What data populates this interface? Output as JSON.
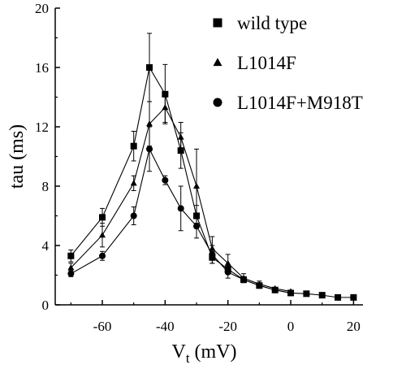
{
  "chart_data": {
    "type": "line",
    "title": "",
    "xlabel_main": "V",
    "xlabel_sub": "t",
    "xlabel_unit": " (mV)",
    "ylabel": "tau (ms)",
    "xlim": [
      -75,
      23
    ],
    "ylim": [
      0,
      20
    ],
    "xticks": [
      -60,
      -40,
      -20,
      0,
      20
    ],
    "yticks": [
      0,
      4,
      8,
      12,
      16,
      20
    ],
    "grid": false,
    "legend_position": "top-right",
    "series": [
      {
        "name": "wild type",
        "marker": "square",
        "x": [
          -70,
          -60,
          -50,
          -45,
          -40,
          -35,
          -30,
          -25,
          -20,
          -15,
          -10,
          -5,
          0,
          5,
          10,
          15,
          20
        ],
        "y": [
          3.3,
          5.9,
          10.7,
          16.0,
          14.2,
          10.4,
          6.0,
          3.2,
          2.4,
          1.7,
          1.3,
          1.0,
          0.8,
          0.75,
          0.65,
          0.5,
          0.5
        ],
        "err": [
          0.4,
          0.6,
          1.0,
          2.3,
          2.0,
          1.2,
          0.7,
          0.4,
          0.3,
          0.2,
          0.1,
          0.1,
          0.1,
          0.05,
          0.05,
          0.05,
          0.05
        ]
      },
      {
        "name": "L1014F",
        "marker": "triangle",
        "x": [
          -70,
          -60,
          -50,
          -45,
          -40,
          -35,
          -30,
          -25,
          -20,
          -15,
          -10,
          -5,
          0
        ],
        "y": [
          2.5,
          4.7,
          8.2,
          12.2,
          13.3,
          11.3,
          8.0,
          3.8,
          2.8,
          1.8,
          1.4,
          1.1,
          0.9
        ],
        "err": [
          0.3,
          0.8,
          0.5,
          1.5,
          1.0,
          1.0,
          2.5,
          0.8,
          0.6,
          0.3,
          0.2,
          0.1,
          0.1
        ]
      },
      {
        "name": "L1014F+M918T",
        "marker": "circle",
        "x": [
          -70,
          -60,
          -50,
          -45,
          -40,
          -35,
          -30,
          -25,
          -20,
          -15,
          -10,
          -5,
          0
        ],
        "y": [
          2.1,
          3.3,
          6.0,
          10.5,
          8.4,
          6.5,
          5.3,
          3.4,
          2.2,
          1.7,
          1.3,
          1.0,
          0.8
        ],
        "err": [
          0.2,
          0.3,
          0.6,
          1.5,
          0.3,
          1.5,
          0.8,
          0.6,
          0.4,
          0.2,
          0.1,
          0.1,
          0.1
        ]
      }
    ]
  }
}
